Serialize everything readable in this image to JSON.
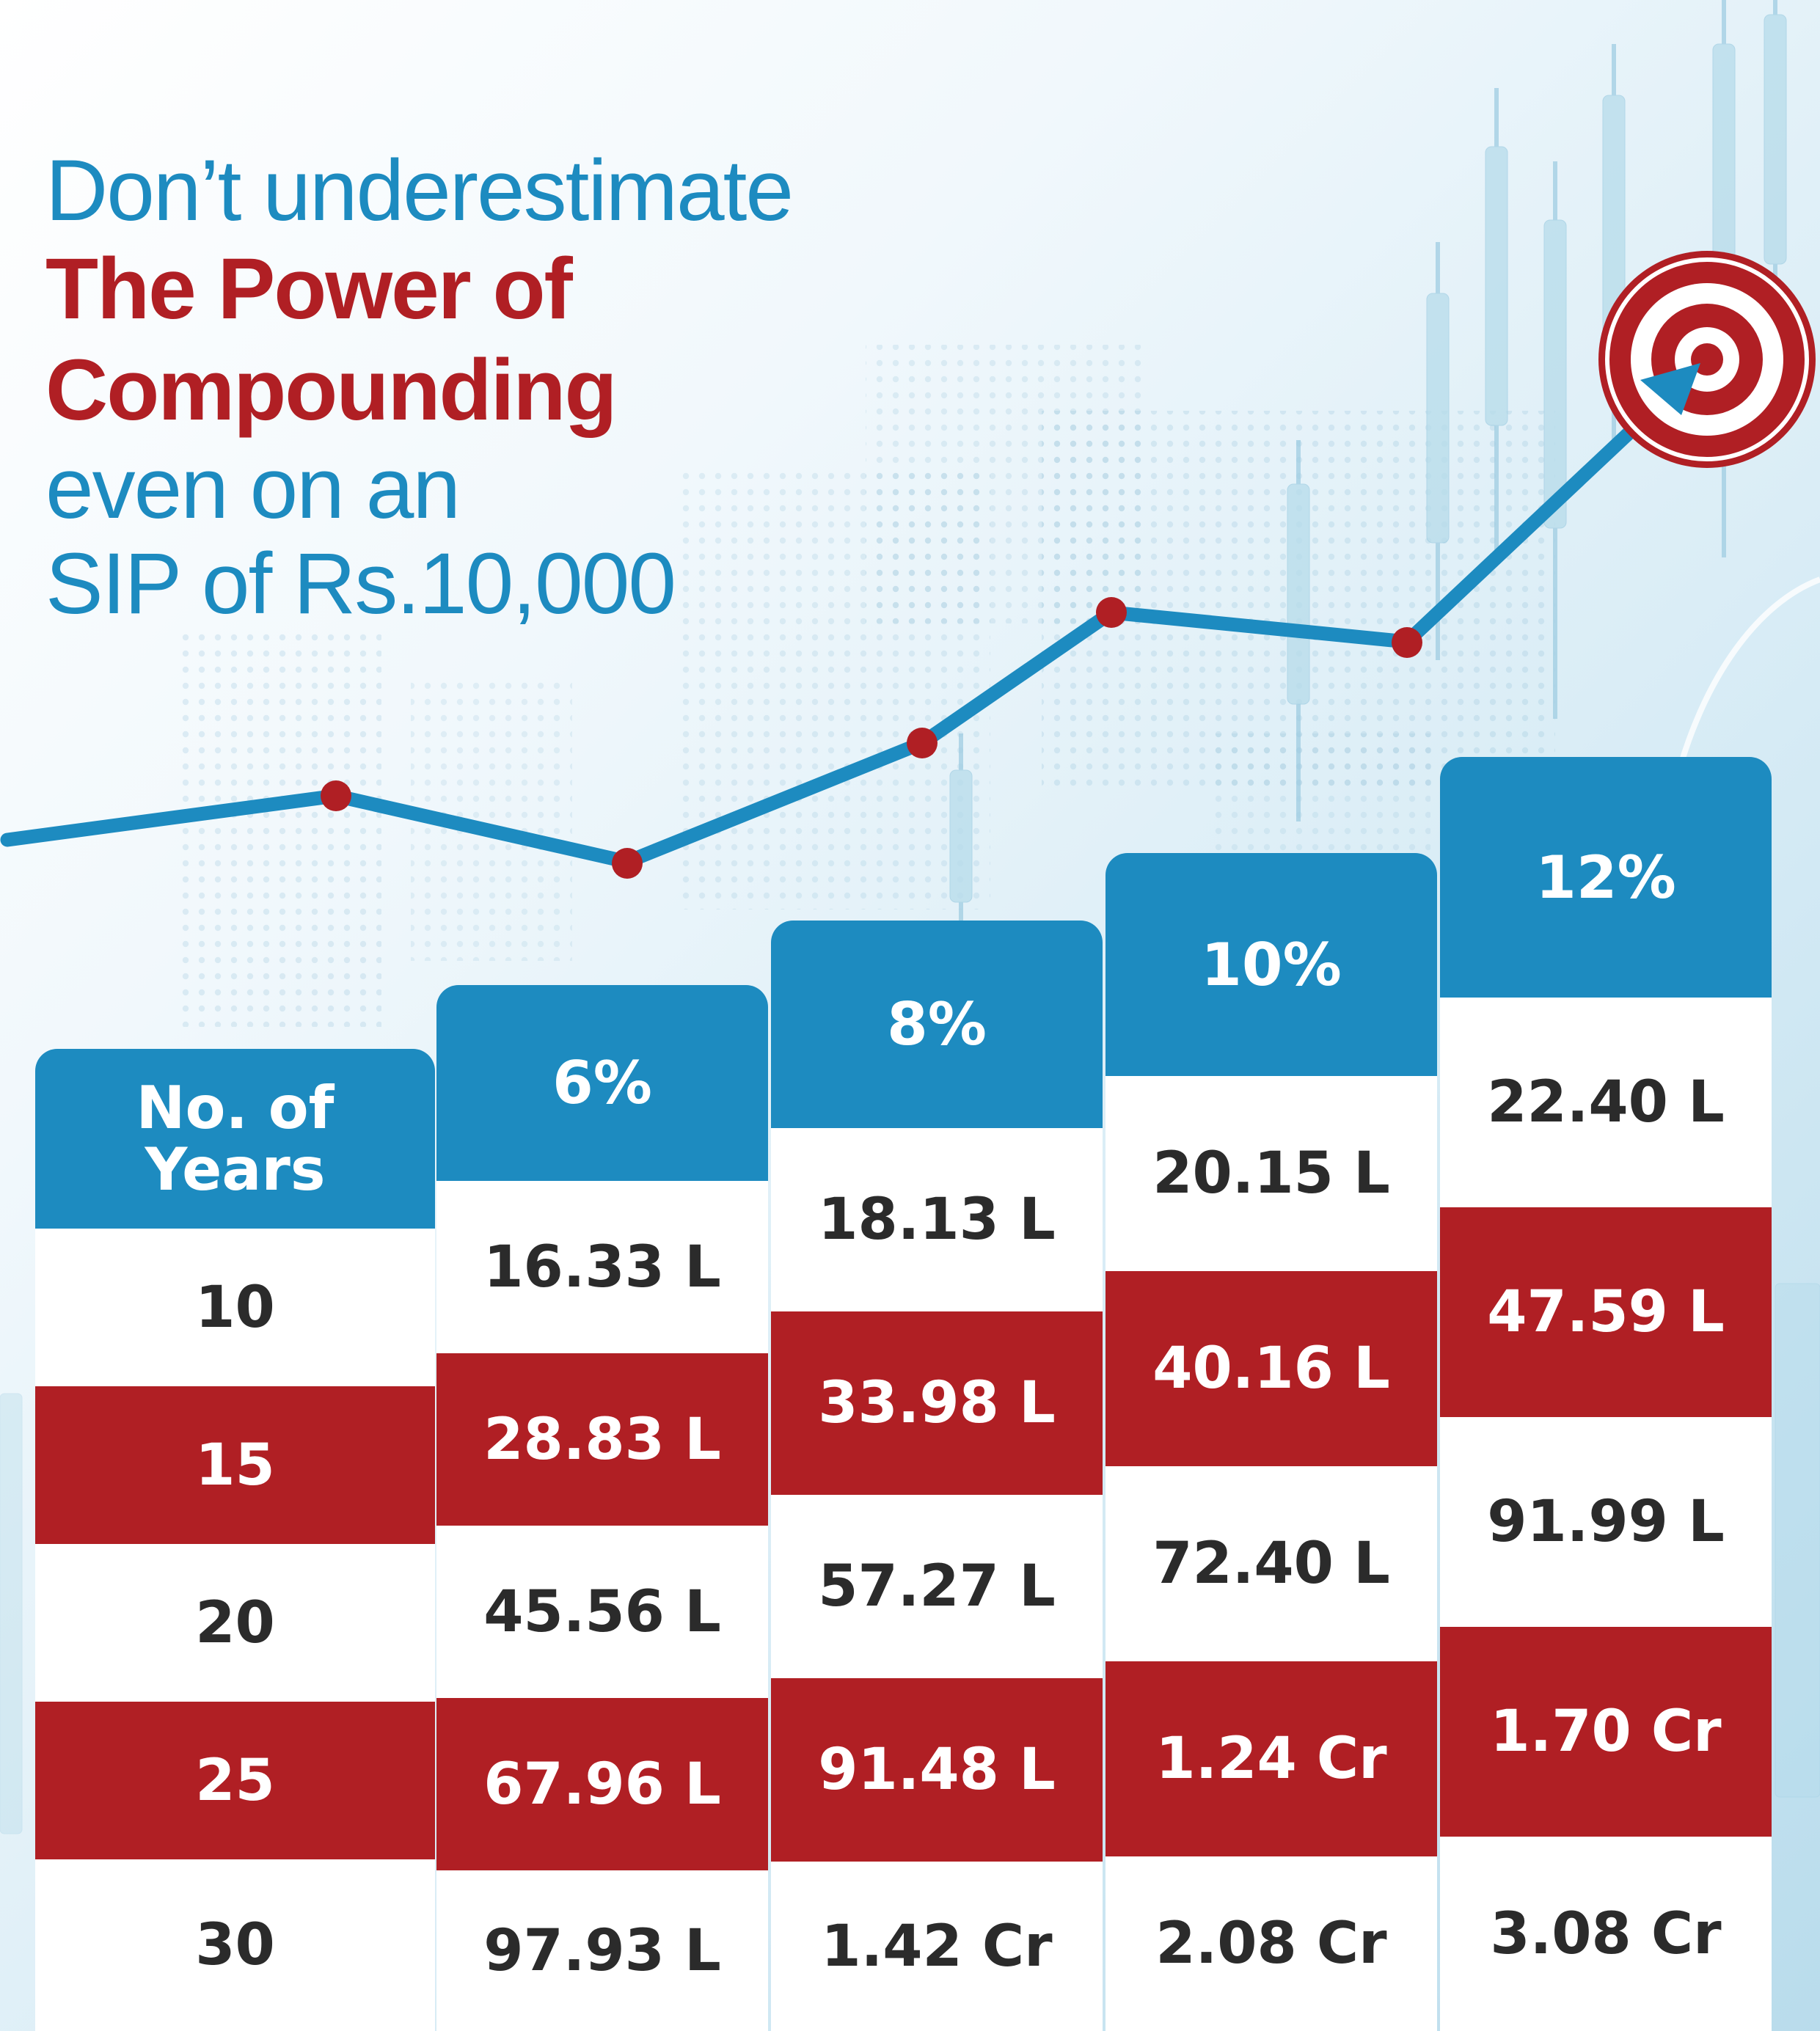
{
  "headline": {
    "line1": "Don’t underestimate",
    "line2": "The Power of",
    "line3": "Compounding",
    "line4": "even on an",
    "line5": "SIP of Rs.10,000"
  },
  "table": {
    "years_header": [
      "No. of",
      "Years"
    ],
    "years": [
      "10",
      "15",
      "20",
      "25",
      "30"
    ],
    "columns": [
      {
        "rate": "6%",
        "values": [
          "16.33 L",
          "28.83 L",
          "45.56 L",
          "67.96 L",
          "97.93 L"
        ]
      },
      {
        "rate": "8%",
        "values": [
          "18.13 L",
          "33.98 L",
          "57.27 L",
          "91.48 L",
          "1.42 Cr"
        ]
      },
      {
        "rate": "10%",
        "values": [
          "20.15 L",
          "40.16 L",
          "72.40 L",
          "1.24 Cr",
          "2.08 Cr"
        ]
      },
      {
        "rate": "12%",
        "values": [
          "22.40 L",
          "47.59 L",
          "91.99 L",
          "1.70 Cr",
          "3.08 Cr"
        ]
      }
    ]
  },
  "decor": {
    "trend_icon": "trend-line-icon",
    "target_icon": "target-icon",
    "colors": {
      "blue": "#1d8bc0",
      "red": "#b01f24",
      "text": "#2b2b2b"
    }
  }
}
